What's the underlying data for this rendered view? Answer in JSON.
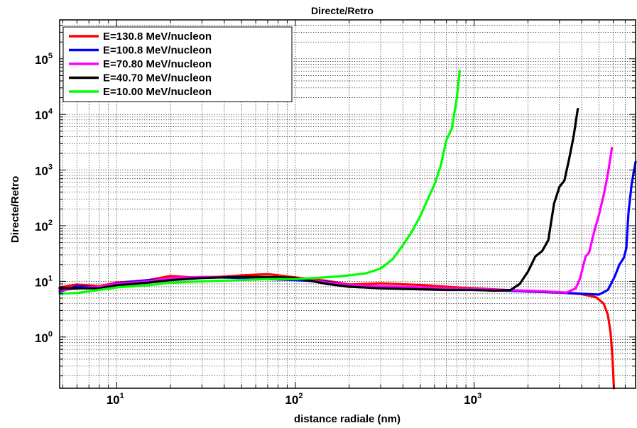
{
  "chart_data": {
    "type": "line",
    "title": "Directe/Retro",
    "xlabel": "distance radiale (nm)",
    "ylabel": "Directe/Retro",
    "x_scale": "log",
    "y_scale": "log",
    "xlim": [
      4.8,
      8000
    ],
    "ylim": [
      0.12,
      500000
    ],
    "grid": true,
    "legend_position": "top-left",
    "x_ticks": [
      {
        "base": "10",
        "exp": "1",
        "value": 10
      },
      {
        "base": "10",
        "exp": "2",
        "value": 100
      },
      {
        "base": "10",
        "exp": "3",
        "value": 1000
      }
    ],
    "y_ticks": [
      {
        "base": "10",
        "exp": "0",
        "value": 1
      },
      {
        "base": "10",
        "exp": "1",
        "value": 10
      },
      {
        "base": "10",
        "exp": "2",
        "value": 100
      },
      {
        "base": "10",
        "exp": "3",
        "value": 1000
      },
      {
        "base": "10",
        "exp": "4",
        "value": 10000
      },
      {
        "base": "10",
        "exp": "5",
        "value": 100000
      }
    ],
    "series": [
      {
        "name": "E=130.8 MeV/nucleon",
        "color": "#ff0000",
        "x": [
          4.8,
          6,
          8,
          10,
          15,
          20,
          30,
          50,
          70,
          100,
          150,
          200,
          300,
          500,
          700,
          1000,
          1500,
          2000,
          3000,
          4000,
          4800,
          5300,
          5600,
          5800,
          5950,
          6050
        ],
        "y": [
          7.8,
          8.8,
          8.2,
          9.5,
          10.5,
          12.5,
          11.5,
          12.8,
          13.5,
          11.8,
          10.2,
          8.8,
          9.2,
          8.6,
          8.0,
          7.5,
          7.0,
          6.6,
          6.3,
          5.9,
          5.2,
          4.0,
          2.5,
          1.2,
          0.4,
          0.12
        ]
      },
      {
        "name": "E=100.8 MeV/nucleon",
        "color": "#0000ff",
        "x": [
          4.8,
          6,
          8,
          10,
          15,
          20,
          30,
          50,
          70,
          100,
          150,
          200,
          300,
          500,
          700,
          1000,
          1500,
          2000,
          3000,
          4000,
          5000,
          5600,
          6100,
          6500,
          6900,
          7100,
          7300,
          7600,
          8000
        ],
        "y": [
          6.5,
          8.2,
          7.8,
          9.2,
          10.5,
          11.0,
          12.0,
          11.5,
          11.0,
          10.5,
          9.8,
          8.5,
          8.0,
          7.6,
          7.3,
          7.0,
          6.8,
          6.6,
          6.3,
          6.0,
          5.8,
          7.0,
          12,
          20,
          27,
          40,
          170,
          550,
          1400
        ]
      },
      {
        "name": "E=70.80 MeV/nucleon",
        "color": "#ff00ff",
        "x": [
          4.8,
          6,
          8,
          10,
          15,
          20,
          30,
          50,
          70,
          100,
          150,
          200,
          300,
          500,
          700,
          1000,
          1500,
          2000,
          2700,
          3300,
          3700,
          3900,
          4200,
          4400,
          4700,
          5000,
          5300,
          5600,
          5900
        ],
        "y": [
          6.8,
          7.5,
          8.0,
          9.0,
          10.0,
          11.5,
          12.0,
          12.0,
          11.5,
          11.5,
          9.5,
          8.5,
          8.2,
          7.8,
          7.5,
          7.3,
          7.0,
          6.8,
          6.5,
          6.3,
          7.5,
          11,
          28,
          33,
          80,
          160,
          350,
          850,
          2500
        ]
      },
      {
        "name": "E=40.70 MeV/nucleon",
        "color": "#000000",
        "x": [
          4.8,
          6,
          8,
          10,
          15,
          20,
          30,
          50,
          70,
          100,
          150,
          200,
          300,
          500,
          700,
          1000,
          1300,
          1600,
          1800,
          2000,
          2200,
          2400,
          2600,
          2800,
          3000,
          3200,
          3400,
          3600,
          3800
        ],
        "y": [
          7.5,
          7.5,
          7.5,
          8.5,
          9.5,
          10.5,
          11.5,
          12.0,
          12.0,
          11.5,
          9.0,
          8.0,
          7.5,
          7.2,
          7.0,
          7.0,
          6.8,
          7.0,
          9.0,
          15,
          28,
          35,
          55,
          250,
          500,
          650,
          1600,
          4000,
          12500
        ]
      },
      {
        "name": "E=10.00 MeV/nucleon",
        "color": "#00ff00",
        "x": [
          4.8,
          6,
          8,
          10,
          15,
          20,
          30,
          50,
          70,
          100,
          130,
          160,
          200,
          250,
          300,
          350,
          400,
          450,
          500,
          550,
          600,
          650,
          700,
          750,
          800,
          830
        ],
        "y": [
          6.0,
          6.2,
          7.0,
          7.8,
          8.5,
          9.5,
          10.0,
          10.5,
          11.0,
          11.0,
          11.5,
          12.0,
          12.8,
          14,
          17,
          25,
          45,
          80,
          150,
          300,
          550,
          1200,
          3500,
          5500,
          20000,
          60000
        ]
      }
    ]
  }
}
